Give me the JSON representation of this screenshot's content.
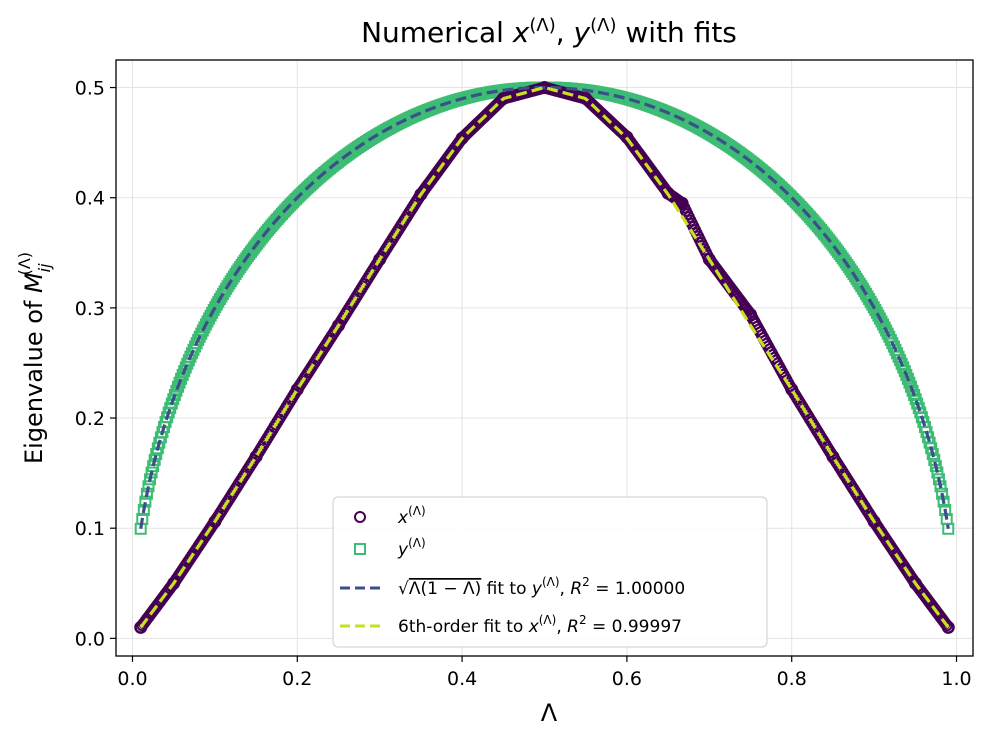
{
  "chart_data": {
    "type": "scatter",
    "title": "Numerical x^(Λ), y^(Λ) with fits",
    "xlabel": "Λ",
    "ylabel": "Eigenvalue of M_ij^(Λ)",
    "xlim": [
      -0.02,
      1.02
    ],
    "ylim": [
      -0.016,
      0.525
    ],
    "xticks": [
      "0.0",
      "0.2",
      "0.4",
      "0.6",
      "0.8",
      "1.0"
    ],
    "yticks": [
      "0.0",
      "0.1",
      "0.2",
      "0.3",
      "0.4",
      "0.5"
    ],
    "grid": true,
    "legend_position": "lower center",
    "colors": {
      "x_series": "#440154",
      "y_series": "#3dbc74",
      "sqrt_fit": "#3b4f8a",
      "poly_fit": "#c8e020"
    },
    "series": [
      {
        "name": "x^(Λ)",
        "marker": "circle",
        "x_range": [
          0.01,
          0.99
        ],
        "points": [
          [
            0.01,
            0.01
          ],
          [
            0.05,
            0.05
          ],
          [
            0.1,
            0.106
          ],
          [
            0.15,
            0.165
          ],
          [
            0.2,
            0.226
          ],
          [
            0.25,
            0.284
          ],
          [
            0.3,
            0.344
          ],
          [
            0.35,
            0.403
          ],
          [
            0.4,
            0.454
          ],
          [
            0.45,
            0.49
          ],
          [
            0.5,
            0.5
          ],
          [
            0.55,
            0.49
          ],
          [
            0.6,
            0.455
          ],
          [
            0.65,
            0.404
          ],
          [
            0.667,
            0.395
          ],
          [
            0.7,
            0.344
          ],
          [
            0.75,
            0.294
          ],
          [
            0.8,
            0.226
          ],
          [
            0.85,
            0.165
          ],
          [
            0.9,
            0.106
          ],
          [
            0.95,
            0.05
          ],
          [
            0.99,
            0.01
          ]
        ]
      },
      {
        "name": "y^(Λ)",
        "marker": "square",
        "x_range": [
          0.01,
          0.99
        ],
        "points": [
          [
            0.01,
            0.1
          ],
          [
            0.05,
            0.218
          ],
          [
            0.1,
            0.3
          ],
          [
            0.2,
            0.4
          ],
          [
            0.3,
            0.458
          ],
          [
            0.4,
            0.49
          ],
          [
            0.5,
            0.5
          ],
          [
            0.6,
            0.49
          ],
          [
            0.7,
            0.458
          ],
          [
            0.8,
            0.4
          ],
          [
            0.9,
            0.3
          ],
          [
            0.95,
            0.218
          ],
          [
            0.99,
            0.1
          ]
        ]
      },
      {
        "name": "√(Λ(1−Λ)) fit to y^(Λ), R² = 1.00000",
        "line": "dashed",
        "formula": "sqrt(x*(1-x))"
      },
      {
        "name": "6th-order fit to x^(Λ), R² = 0.99997",
        "line": "dashed",
        "points": [
          [
            0.01,
            0.01
          ],
          [
            0.05,
            0.05
          ],
          [
            0.1,
            0.106
          ],
          [
            0.15,
            0.165
          ],
          [
            0.2,
            0.226
          ],
          [
            0.25,
            0.284
          ],
          [
            0.3,
            0.344
          ],
          [
            0.35,
            0.403
          ],
          [
            0.4,
            0.454
          ],
          [
            0.45,
            0.49
          ],
          [
            0.5,
            0.5
          ],
          [
            0.55,
            0.49
          ],
          [
            0.6,
            0.454
          ],
          [
            0.65,
            0.403
          ],
          [
            0.7,
            0.344
          ],
          [
            0.75,
            0.284
          ],
          [
            0.8,
            0.226
          ],
          [
            0.85,
            0.165
          ],
          [
            0.9,
            0.106
          ],
          [
            0.95,
            0.05
          ],
          [
            0.99,
            0.01
          ]
        ]
      }
    ]
  }
}
